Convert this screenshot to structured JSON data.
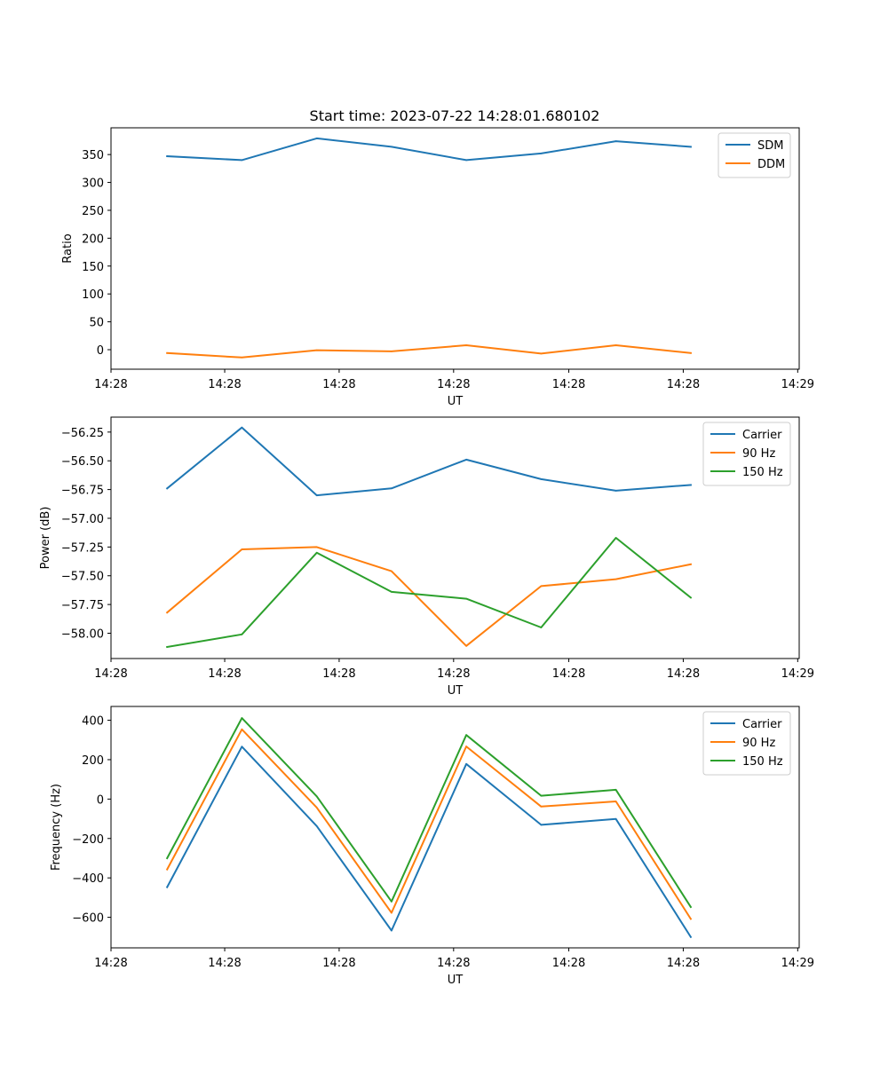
{
  "figure_title": "Start time: 2023-07-22 14:28:01.680102",
  "chart_data": [
    {
      "type": "line",
      "title": "Start time: 2023-07-22 14:28:01.680102",
      "xlabel": "UT",
      "ylabel": "Ratio",
      "xlim": [
        -0.75,
        8.45
      ],
      "ylim": [
        -35,
        398
      ],
      "x": [
        0,
        1,
        2,
        3,
        4,
        5,
        6,
        7
      ],
      "x_ticks": [
        {
          "pos": -0.75,
          "label": "14:28"
        },
        {
          "pos": 0.77,
          "label": "14:28"
        },
        {
          "pos": 2.3,
          "label": "14:28"
        },
        {
          "pos": 3.83,
          "label": "14:28"
        },
        {
          "pos": 5.37,
          "label": "14:28"
        },
        {
          "pos": 6.9,
          "label": "14:28"
        },
        {
          "pos": 8.43,
          "label": "14:29"
        }
      ],
      "y_ticks": [
        {
          "value": 0,
          "label": "0"
        },
        {
          "value": 50,
          "label": "50"
        },
        {
          "value": 100,
          "label": "100"
        },
        {
          "value": 150,
          "label": "150"
        },
        {
          "value": 200,
          "label": "200"
        },
        {
          "value": 250,
          "label": "250"
        },
        {
          "value": 300,
          "label": "300"
        },
        {
          "value": 350,
          "label": "350"
        }
      ],
      "series": [
        {
          "name": "SDM",
          "color": "#1f77b4",
          "values": [
            347,
            340,
            379,
            364,
            340,
            352,
            374,
            364
          ]
        },
        {
          "name": "DDM",
          "color": "#ff7f0e",
          "values": [
            -6,
            -14,
            -1,
            -3,
            8,
            -7,
            8,
            -6
          ]
        }
      ],
      "legend": "top-right",
      "grid": false
    },
    {
      "type": "line",
      "title": "",
      "xlabel": "UT",
      "ylabel": "Power (dB)",
      "xlim": [
        -0.75,
        8.45
      ],
      "ylim": [
        -58.22,
        -56.12
      ],
      "x": [
        0,
        1,
        2,
        3,
        4,
        5,
        6,
        7
      ],
      "x_ticks": [
        {
          "pos": -0.75,
          "label": "14:28"
        },
        {
          "pos": 0.77,
          "label": "14:28"
        },
        {
          "pos": 2.3,
          "label": "14:28"
        },
        {
          "pos": 3.83,
          "label": "14:28"
        },
        {
          "pos": 5.37,
          "label": "14:28"
        },
        {
          "pos": 6.9,
          "label": "14:28"
        },
        {
          "pos": 8.43,
          "label": "14:29"
        }
      ],
      "y_ticks": [
        {
          "value": -58.0,
          "label": "−58.00"
        },
        {
          "value": -57.75,
          "label": "−57.75"
        },
        {
          "value": -57.5,
          "label": "−57.50"
        },
        {
          "value": -57.25,
          "label": "−57.25"
        },
        {
          "value": -57.0,
          "label": "−57.00"
        },
        {
          "value": -56.75,
          "label": "−56.75"
        },
        {
          "value": -56.5,
          "label": "−56.50"
        },
        {
          "value": -56.25,
          "label": "−56.25"
        }
      ],
      "series": [
        {
          "name": "Carrier",
          "color": "#1f77b4",
          "values": [
            -56.74,
            -56.21,
            -56.8,
            -56.74,
            -56.49,
            -56.66,
            -56.76,
            -56.71
          ]
        },
        {
          "name": "90 Hz",
          "color": "#ff7f0e",
          "values": [
            -57.82,
            -57.27,
            -57.25,
            -57.46,
            -58.11,
            -57.59,
            -57.53,
            -57.4
          ]
        },
        {
          "name": "150 Hz",
          "color": "#2ca02c",
          "values": [
            -58.12,
            -58.01,
            -57.3,
            -57.64,
            -57.7,
            -57.95,
            -57.17,
            -57.69
          ]
        }
      ],
      "legend": "top-right",
      "grid": false
    },
    {
      "type": "line",
      "title": "",
      "xlabel": "UT",
      "ylabel": "Frequency (Hz)",
      "xlim": [
        -0.75,
        8.45
      ],
      "ylim": [
        -755,
        470
      ],
      "x": [
        0,
        1,
        2,
        3,
        4,
        5,
        6,
        7
      ],
      "x_ticks": [
        {
          "pos": -0.75,
          "label": "14:28"
        },
        {
          "pos": 0.77,
          "label": "14:28"
        },
        {
          "pos": 2.3,
          "label": "14:28"
        },
        {
          "pos": 3.83,
          "label": "14:28"
        },
        {
          "pos": 5.37,
          "label": "14:28"
        },
        {
          "pos": 6.9,
          "label": "14:28"
        },
        {
          "pos": 8.43,
          "label": "14:29"
        }
      ],
      "y_ticks": [
        {
          "value": -600,
          "label": "−600"
        },
        {
          "value": -400,
          "label": "−400"
        },
        {
          "value": -200,
          "label": "−200"
        },
        {
          "value": 0,
          "label": "0"
        },
        {
          "value": 200,
          "label": "200"
        },
        {
          "value": 400,
          "label": "400"
        }
      ],
      "series": [
        {
          "name": "Carrier",
          "color": "#1f77b4",
          "values": [
            -447,
            266,
            -137,
            -667,
            178,
            -131,
            -101,
            -700
          ]
        },
        {
          "name": "90 Hz",
          "color": "#ff7f0e",
          "values": [
            -357,
            354,
            -43,
            -577,
            267,
            -38,
            -12,
            -608
          ]
        },
        {
          "name": "150 Hz",
          "color": "#2ca02c",
          "values": [
            -300,
            411,
            14,
            -520,
            325,
            17,
            47,
            -548
          ]
        }
      ],
      "legend": "top-right",
      "grid": false
    }
  ]
}
